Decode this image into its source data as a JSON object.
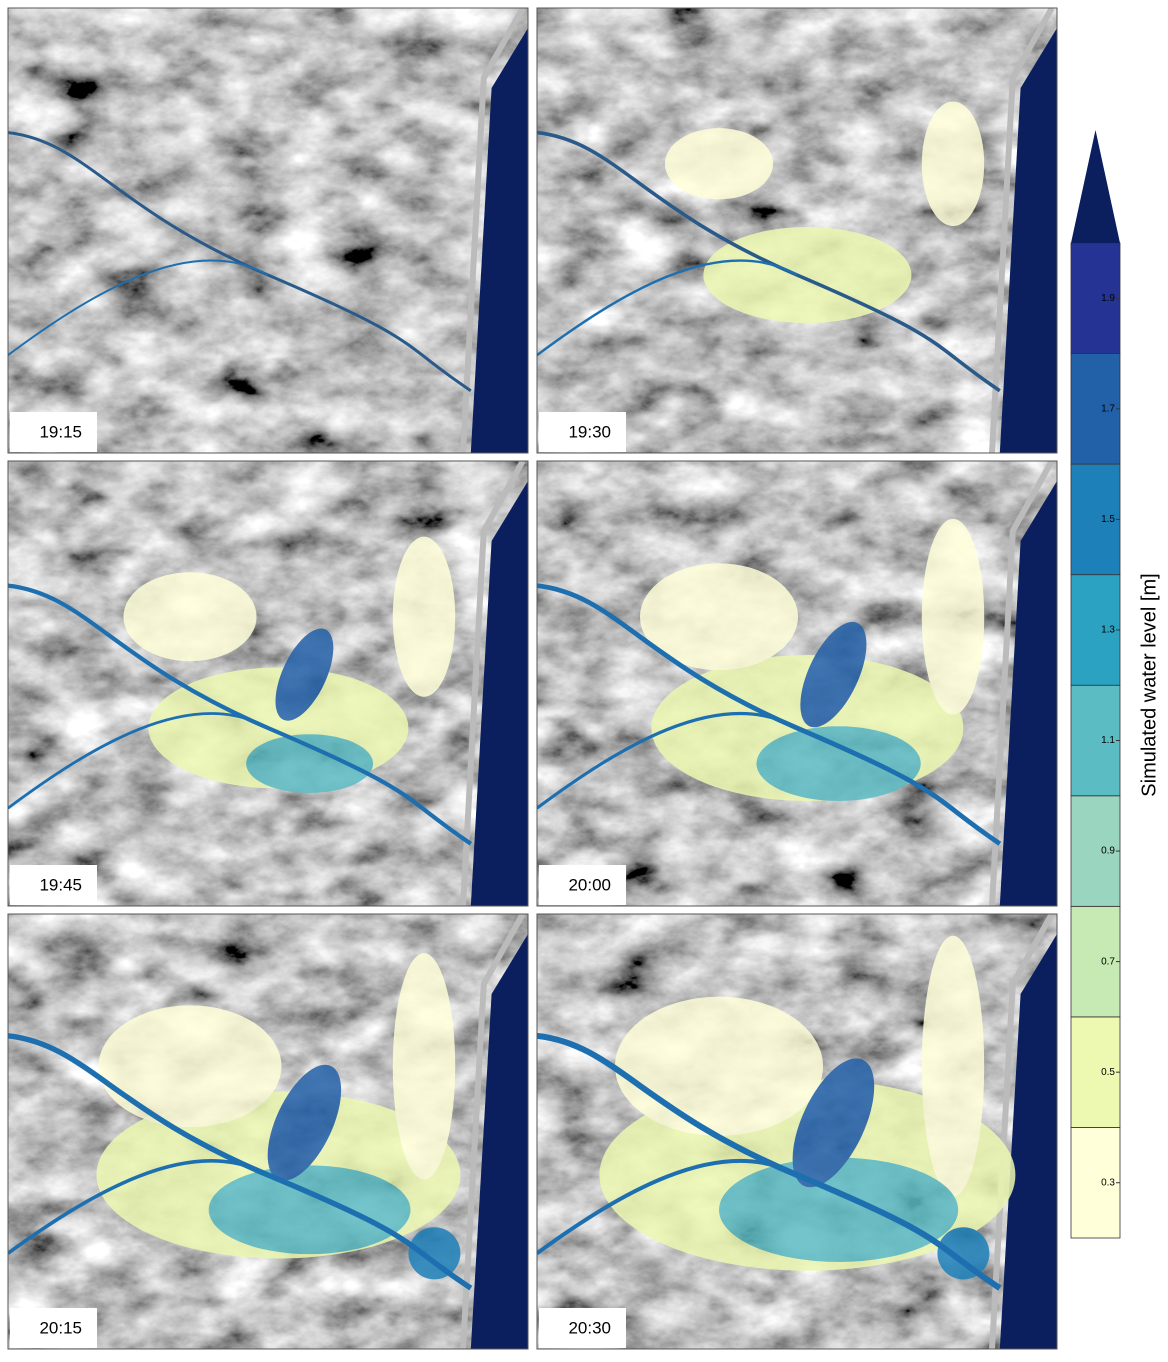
{
  "panels": [
    {
      "label": "19:15"
    },
    {
      "label": "19:30"
    },
    {
      "label": "19:45"
    },
    {
      "label": "20:00"
    },
    {
      "label": "20:15"
    },
    {
      "label": "20:30"
    }
  ],
  "colorbar": {
    "title": "Simulated water level [m]",
    "lim": [
      0.2,
      2.0
    ],
    "ticks": [
      0.3,
      0.5,
      0.7,
      0.9,
      1.1,
      1.3,
      1.5,
      1.7,
      1.9
    ],
    "colors": [
      "#ffffd9",
      "#edf8b1",
      "#c7e9b4",
      "#99d5bf",
      "#5cbcc3",
      "#2ca2c2",
      "#1d80b9",
      "#2260a8",
      "#253494"
    ],
    "extend_color": "#0b1f5e"
  }
}
